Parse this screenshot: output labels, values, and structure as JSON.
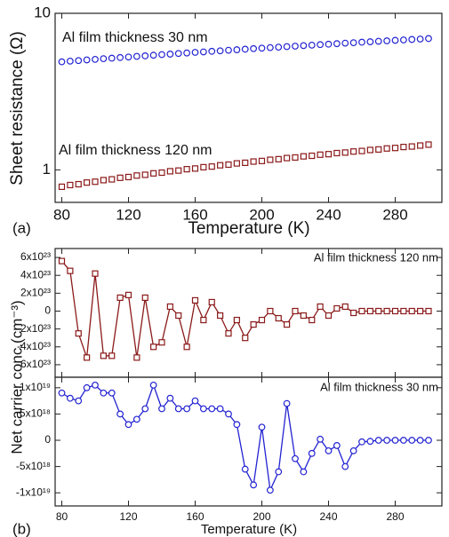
{
  "chart_data": [
    {
      "type": "line",
      "panel_label": "(a)",
      "xlabel": "Temperature (K)",
      "ylabel": "Sheet resistance (Ω)",
      "log_scale": true,
      "connect": false,
      "xtick_labels": true,
      "x": [
        80,
        85,
        90,
        95,
        100,
        105,
        110,
        115,
        120,
        125,
        130,
        135,
        140,
        145,
        150,
        155,
        160,
        165,
        170,
        175,
        180,
        185,
        190,
        195,
        200,
        205,
        210,
        215,
        220,
        225,
        230,
        235,
        240,
        245,
        250,
        255,
        260,
        265,
        270,
        275,
        280,
        285,
        290,
        295,
        300
      ],
      "series": [
        {
          "name": "Al film thickness 30 nm",
          "color": "#2323d2",
          "marker": "circle",
          "values": [
            4.9,
            4.95,
            4.99,
            5.04,
            5.08,
            5.13,
            5.17,
            5.22,
            5.26,
            5.31,
            5.35,
            5.4,
            5.45,
            5.49,
            5.54,
            5.58,
            5.63,
            5.67,
            5.72,
            5.76,
            5.81,
            5.85,
            5.9,
            5.95,
            5.99,
            6.04,
            6.08,
            6.13,
            6.17,
            6.22,
            6.26,
            6.31,
            6.35,
            6.4,
            6.45,
            6.49,
            6.54,
            6.58,
            6.63,
            6.67,
            6.72,
            6.76,
            6.81,
            6.85,
            6.9
          ]
        },
        {
          "name": "Al film thickness 120 nm",
          "color": "#8b1a1a",
          "marker": "square",
          "values": [
            0.78,
            0.8,
            0.81,
            0.83,
            0.84,
            0.86,
            0.87,
            0.89,
            0.9,
            0.92,
            0.93,
            0.95,
            0.96,
            0.98,
            0.99,
            1.01,
            1.02,
            1.04,
            1.05,
            1.07,
            1.08,
            1.1,
            1.11,
            1.13,
            1.14,
            1.16,
            1.17,
            1.19,
            1.2,
            1.22,
            1.23,
            1.25,
            1.26,
            1.28,
            1.29,
            1.31,
            1.32,
            1.34,
            1.35,
            1.37,
            1.38,
            1.4,
            1.41,
            1.43,
            1.45
          ]
        }
      ],
      "xlim": [
        76,
        308
      ],
      "xticks": [
        80,
        120,
        160,
        200,
        240,
        280
      ],
      "ylim": [
        0.62,
        10
      ],
      "yticks": [
        1,
        10
      ]
    },
    {
      "type": "line",
      "ylabel": "Net carrier conc.(cm⁻³)",
      "log_scale": false,
      "connect": true,
      "xtick_labels": false,
      "x": [
        80,
        85,
        90,
        95,
        100,
        105,
        110,
        115,
        120,
        125,
        130,
        135,
        140,
        145,
        150,
        155,
        160,
        165,
        170,
        175,
        180,
        185,
        190,
        195,
        200,
        205,
        210,
        215,
        220,
        225,
        230,
        235,
        240,
        245,
        250,
        255,
        260,
        265,
        270,
        275,
        280,
        285,
        290,
        295,
        300
      ],
      "series": [
        {
          "name": "Al film thickness 120 nm",
          "color": "#8b1a1a",
          "marker": "square",
          "values": [
            5.6e+23,
            4.5e+23,
            -2.5e+23,
            -5.2e+23,
            4.2e+23,
            -5e+23,
            -5e+23,
            1.5e+23,
            1.8e+23,
            -5.2e+23,
            1.5e+23,
            -4e+23,
            -3.5e+23,
            5e+22,
            -5e+22,
            -4e+23,
            1.2e+23,
            -1e+23,
            1e+23,
            -5e+22,
            -2.5e+23,
            -1e+23,
            -3e+23,
            -1.5e+23,
            -1e+23,
            0,
            -8e+22,
            -1.5e+23,
            0,
            -5e+22,
            -1e+23,
            5e+22,
            -5e+22,
            3e+22,
            5e+22,
            -2e+22,
            0,
            0,
            0,
            0,
            0,
            0,
            0,
            0,
            0
          ]
        }
      ],
      "xlim": [
        76,
        308
      ],
      "xticks": [
        80,
        120,
        160,
        200,
        240,
        280
      ],
      "ylim": [
        -7.4e+23,
        7e+23
      ],
      "yticks": [
        {
          "value": -6e+23,
          "label": "-6x10²³"
        },
        {
          "value": -4e+23,
          "label": "-4x10²³"
        },
        {
          "value": -2e+23,
          "label": "-2x10²³"
        },
        0,
        {
          "value": 2e+23,
          "label": "2x10²³"
        },
        {
          "value": 4e+23,
          "label": "4x10²³"
        },
        {
          "value": 6e+23,
          "label": "6x10²³"
        }
      ]
    },
    {
      "type": "line",
      "panel_label": "(b)",
      "xlabel": "Temperature (K)",
      "log_scale": false,
      "connect": true,
      "xtick_labels": true,
      "x": [
        80,
        85,
        90,
        95,
        100,
        105,
        110,
        115,
        120,
        125,
        130,
        135,
        140,
        145,
        150,
        155,
        160,
        165,
        170,
        175,
        180,
        185,
        190,
        195,
        200,
        205,
        210,
        215,
        220,
        225,
        230,
        235,
        240,
        245,
        250,
        255,
        260,
        265,
        270,
        275,
        280,
        285,
        290,
        295,
        300
      ],
      "series": [
        {
          "name": "Al film thickness 30 nm",
          "color": "#2323d2",
          "marker": "circle",
          "values": [
            9e+18,
            8e+18,
            7.5e+18,
            1e+19,
            1.05e+19,
            9e+18,
            9e+18,
            5e+18,
            3e+18,
            4e+18,
            6e+18,
            1.05e+19,
            6e+18,
            8e+18,
            6e+18,
            6e+18,
            7.5e+18,
            6e+18,
            6e+18,
            6e+18,
            5e+18,
            3e+18,
            -5.5e+18,
            -8.5e+18,
            2.5e+18,
            -9.5e+18,
            -6e+18,
            7e+18,
            -3.5e+18,
            -6e+18,
            -2.5e+18,
            2e+17,
            -2e+18,
            -1e+18,
            -5e+18,
            -2e+18,
            -3e+17,
            -2e+17,
            0,
            0,
            0,
            0,
            0,
            0,
            0
          ]
        }
      ],
      "xlim": [
        76,
        308
      ],
      "xticks": [
        80,
        120,
        160,
        200,
        240,
        280
      ],
      "ylim": [
        -1.25e+19,
        1.2e+19
      ],
      "yticks": [
        {
          "value": -1e+19,
          "label": "-1x10¹⁹"
        },
        {
          "value": -5e+18,
          "label": "-5x10¹⁸"
        },
        0,
        {
          "value": 5e+18,
          "label": "5x10¹⁸"
        },
        {
          "value": 1e+19,
          "label": "1x10¹⁹"
        }
      ]
    }
  ]
}
